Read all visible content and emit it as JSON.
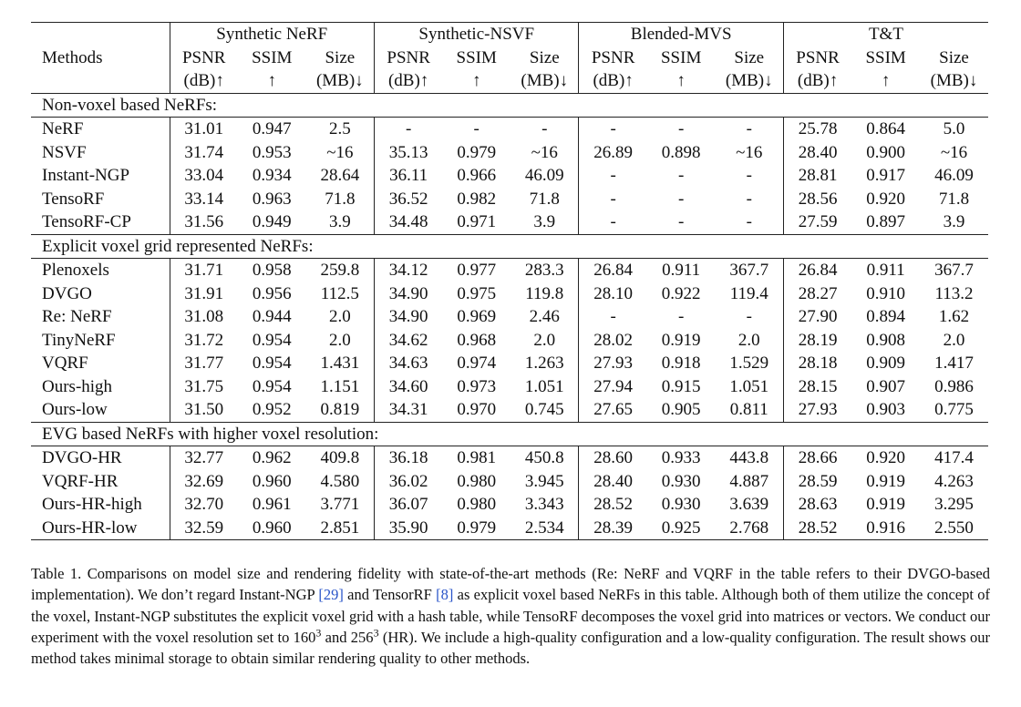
{
  "table": {
    "groups": [
      "Synthetic NeRF",
      "Synthetic-NSVF",
      "Blended-MVS",
      "T&T"
    ],
    "methods_header": "Methods",
    "metric_row1": [
      "PSNR",
      "SSIM",
      "Size"
    ],
    "metric_row2": [
      "(dB)↑",
      "↑",
      "(MB)↓"
    ],
    "sections": [
      {
        "title": "Non-voxel based NeRFs:",
        "rows": [
          {
            "name": "NeRF",
            "values": [
              "31.01",
              "0.947",
              "2.5",
              "-",
              "-",
              "-",
              "-",
              "-",
              "-",
              "25.78",
              "0.864",
              "5.0"
            ]
          },
          {
            "name": "NSVF",
            "values": [
              "31.74",
              "0.953",
              "~16",
              "35.13",
              "0.979",
              "~16",
              "26.89",
              "0.898",
              "~16",
              "28.40",
              "0.900",
              "~16"
            ]
          },
          {
            "name": "Instant-NGP",
            "values": [
              "33.04",
              "0.934",
              "28.64",
              "36.11",
              "0.966",
              "46.09",
              "-",
              "-",
              "-",
              "28.81",
              "0.917",
              "46.09"
            ]
          },
          {
            "name": "TensoRF",
            "values": [
              "33.14",
              "0.963",
              "71.8",
              "36.52",
              "0.982",
              "71.8",
              "-",
              "-",
              "-",
              "28.56",
              "0.920",
              "71.8"
            ]
          },
          {
            "name": "TensoRF-CP",
            "values": [
              "31.56",
              "0.949",
              "3.9",
              "34.48",
              "0.971",
              "3.9",
              "-",
              "-",
              "-",
              "27.59",
              "0.897",
              "3.9"
            ]
          }
        ]
      },
      {
        "title": "Explicit voxel grid represented NeRFs:",
        "rows": [
          {
            "name": "Plenoxels",
            "values": [
              "31.71",
              "0.958",
              "259.8",
              "34.12",
              "0.977",
              "283.3",
              "26.84",
              "0.911",
              "367.7",
              "26.84",
              "0.911",
              "367.7"
            ]
          },
          {
            "name": "DVGO",
            "values": [
              "31.91",
              "0.956",
              "112.5",
              "34.90",
              "0.975",
              "119.8",
              "28.10",
              "0.922",
              "119.4",
              "28.27",
              "0.910",
              "113.2"
            ]
          },
          {
            "name": "Re: NeRF",
            "values": [
              "31.08",
              "0.944",
              "2.0",
              "34.90",
              "0.969",
              "2.46",
              "-",
              "-",
              "-",
              "27.90",
              "0.894",
              "1.62"
            ]
          },
          {
            "name": "TinyNeRF",
            "values": [
              "31.72",
              "0.954",
              "2.0",
              "34.62",
              "0.968",
              "2.0",
              "28.02",
              "0.919",
              "2.0",
              "28.19",
              "0.908",
              "2.0"
            ]
          },
          {
            "name": "VQRF",
            "values": [
              "31.77",
              "0.954",
              "1.431",
              "34.63",
              "0.974",
              "1.263",
              "27.93",
              "0.918",
              "1.529",
              "28.18",
              "0.909",
              "1.417"
            ]
          },
          {
            "name": "Ours-high",
            "values": [
              "31.75",
              "0.954",
              "1.151",
              "34.60",
              "0.973",
              "1.051",
              "27.94",
              "0.915",
              "1.051",
              "28.15",
              "0.907",
              "0.986"
            ]
          },
          {
            "name": "Ours-low",
            "values": [
              "31.50",
              "0.952",
              "0.819",
              "34.31",
              "0.970",
              "0.745",
              "27.65",
              "0.905",
              "0.811",
              "27.93",
              "0.903",
              "0.775"
            ]
          }
        ]
      },
      {
        "title": "EVG based NeRFs with higher voxel resolution:",
        "rows": [
          {
            "name": "DVGO-HR",
            "values": [
              "32.77",
              "0.962",
              "409.8",
              "36.18",
              "0.981",
              "450.8",
              "28.60",
              "0.933",
              "443.8",
              "28.66",
              "0.920",
              "417.4"
            ]
          },
          {
            "name": "VQRF-HR",
            "values": [
              "32.69",
              "0.960",
              "4.580",
              "36.02",
              "0.980",
              "3.945",
              "28.40",
              "0.930",
              "4.887",
              "28.59",
              "0.919",
              "4.263"
            ]
          },
          {
            "name": "Ours-HR-high",
            "values": [
              "32.70",
              "0.961",
              "3.771",
              "36.07",
              "0.980",
              "3.343",
              "28.52",
              "0.930",
              "3.639",
              "28.63",
              "0.919",
              "3.295"
            ]
          },
          {
            "name": "Ours-HR-low",
            "values": [
              "32.59",
              "0.960",
              "2.851",
              "35.90",
              "0.979",
              "2.534",
              "28.39",
              "0.925",
              "2.768",
              "28.52",
              "0.916",
              "2.550"
            ]
          }
        ]
      }
    ]
  },
  "caption": {
    "p1": "Table 1. Comparisons on model size and rendering fidelity with state-of-the-art methods (Re: NeRF and VQRF in the table refers to their DVGO-based implementation). We don’t regard Instant-NGP ",
    "ref1": "[29]",
    "p2": " and TensorRF ",
    "ref2": "[8]",
    "p3": " as explicit voxel based NeRFs in this table. Although both of them utilize the concept of the voxel, Instant-NGP substitutes the explicit voxel grid with a hash table, while TensoRF decomposes the voxel grid into matrices or vectors. We conduct our experiment with the voxel resolution set to 160",
    "exp1": "3",
    "p4": " and 256",
    "exp2": "3",
    "p5": " (HR). We include a high-quality configuration and a low-quality configuration. The result shows our method takes minimal storage to obtain similar rendering quality to other methods."
  }
}
